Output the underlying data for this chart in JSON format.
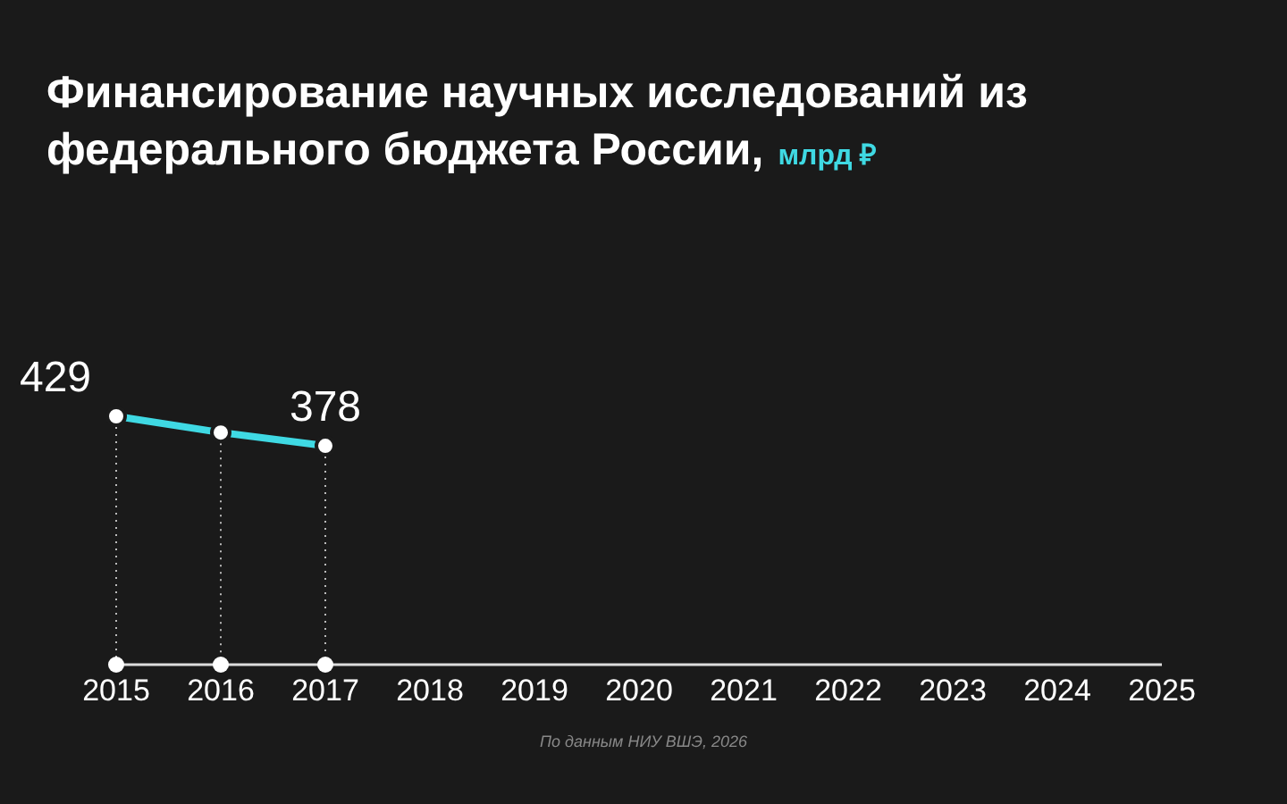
{
  "chart_data": {
    "type": "line",
    "title": "Финансирование научных исследований из федерального бюджета России,",
    "subtitle": "млрд ₽",
    "categories": [
      "2015",
      "2016",
      "2017",
      "2018",
      "2019",
      "2020",
      "2021",
      "2022",
      "2023",
      "2024",
      "2025"
    ],
    "series": [
      {
        "color": "#3fd9e3",
        "values": [
          429,
          401,
          378,
          null,
          null,
          null,
          null,
          null,
          null,
          null,
          null
        ],
        "value_labels": [
          "429",
          null,
          "378",
          null,
          null,
          null,
          null,
          null,
          null,
          null,
          null
        ]
      }
    ],
    "marker": "circle",
    "line_style": "solid",
    "annotations": [
      "По данным НИУ ВШЭ, 2026"
    ]
  }
}
